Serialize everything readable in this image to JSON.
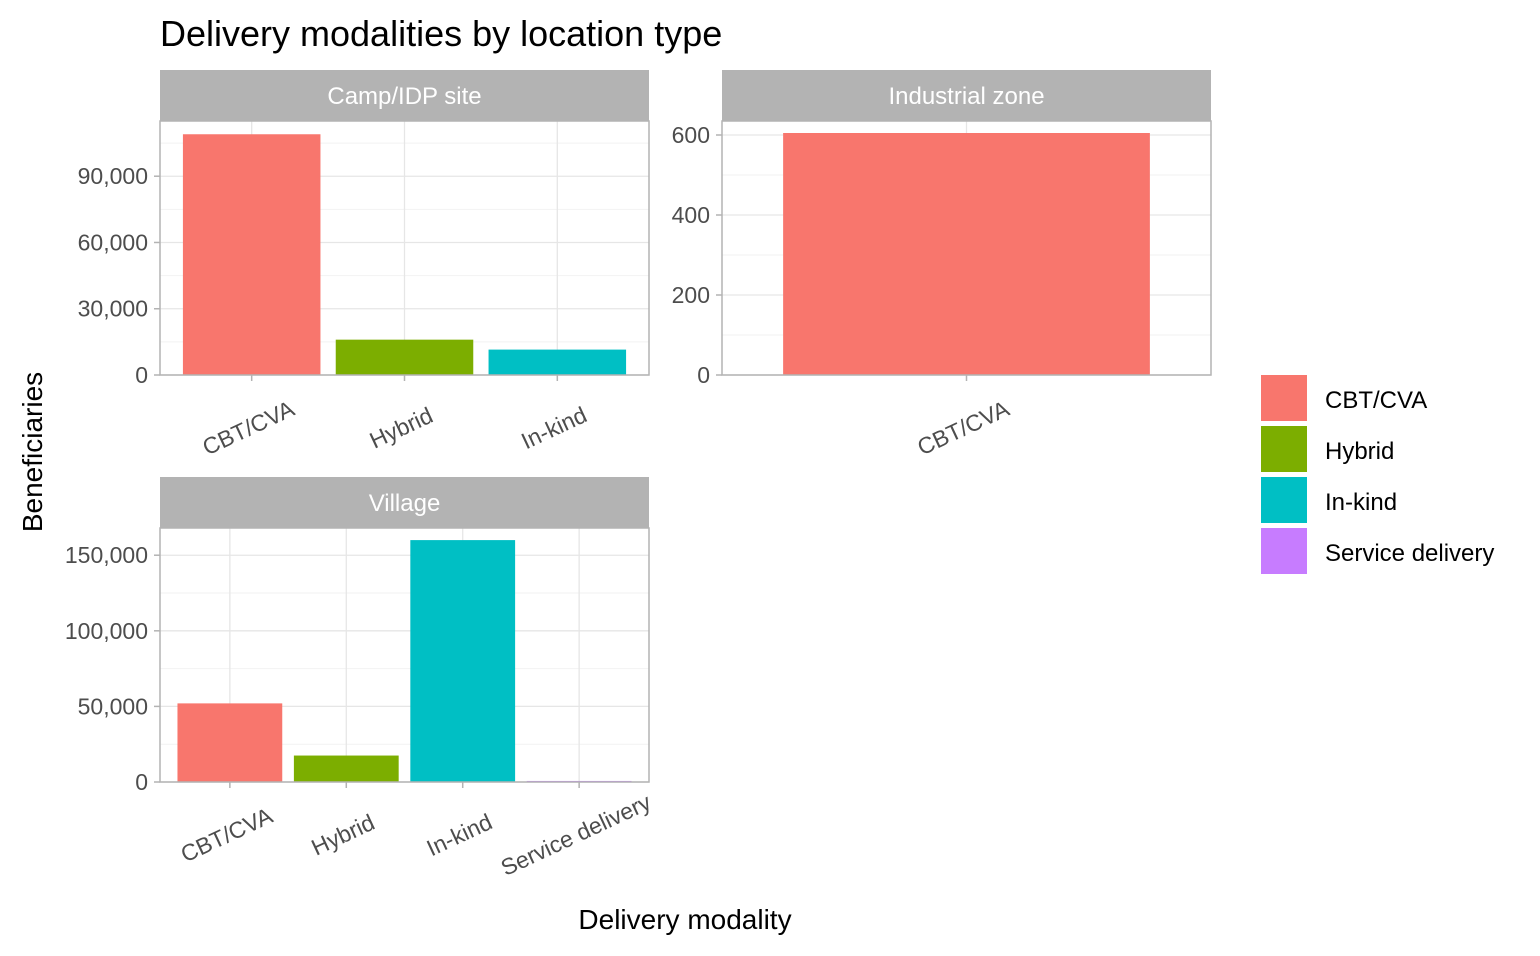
{
  "chart_data": {
    "type": "bar",
    "title": "Delivery modalities by location type",
    "xlabel": "Delivery modality",
    "ylabel": "Beneficiaries",
    "grid": true,
    "legend_position": "right",
    "legend": [
      {
        "label": "CBT/CVA",
        "color": "#F8766D"
      },
      {
        "label": "Hybrid",
        "color": "#7CAE00"
      },
      {
        "label": "In-kind",
        "color": "#00BFC4"
      },
      {
        "label": "Service delivery",
        "color": "#C77CFF"
      }
    ],
    "facets": [
      {
        "label": "Camp/IDP site",
        "categories": [
          "CBT/CVA",
          "Hybrid",
          "In-kind"
        ],
        "values": [
          109000,
          16000,
          11500
        ],
        "ylim": [
          0,
          115000
        ],
        "yticks": [
          0,
          30000,
          60000,
          90000
        ],
        "ytick_labels": [
          "0",
          "30,000",
          "60,000",
          "90,000"
        ]
      },
      {
        "label": "Industrial zone",
        "categories": [
          "CBT/CVA"
        ],
        "values": [
          605
        ],
        "ylim": [
          0,
          635
        ],
        "yticks": [
          0,
          200,
          400,
          600
        ],
        "ytick_labels": [
          "0",
          "200",
          "400",
          "600"
        ]
      },
      {
        "label": "Village",
        "categories": [
          "CBT/CVA",
          "Hybrid",
          "In-kind",
          "Service delivery"
        ],
        "values": [
          52000,
          17500,
          160000,
          700
        ],
        "ylim": [
          0,
          168000
        ],
        "yticks": [
          0,
          50000,
          100000,
          150000
        ],
        "ytick_labels": [
          "0",
          "50,000",
          "100,000",
          "150,000"
        ]
      }
    ]
  }
}
